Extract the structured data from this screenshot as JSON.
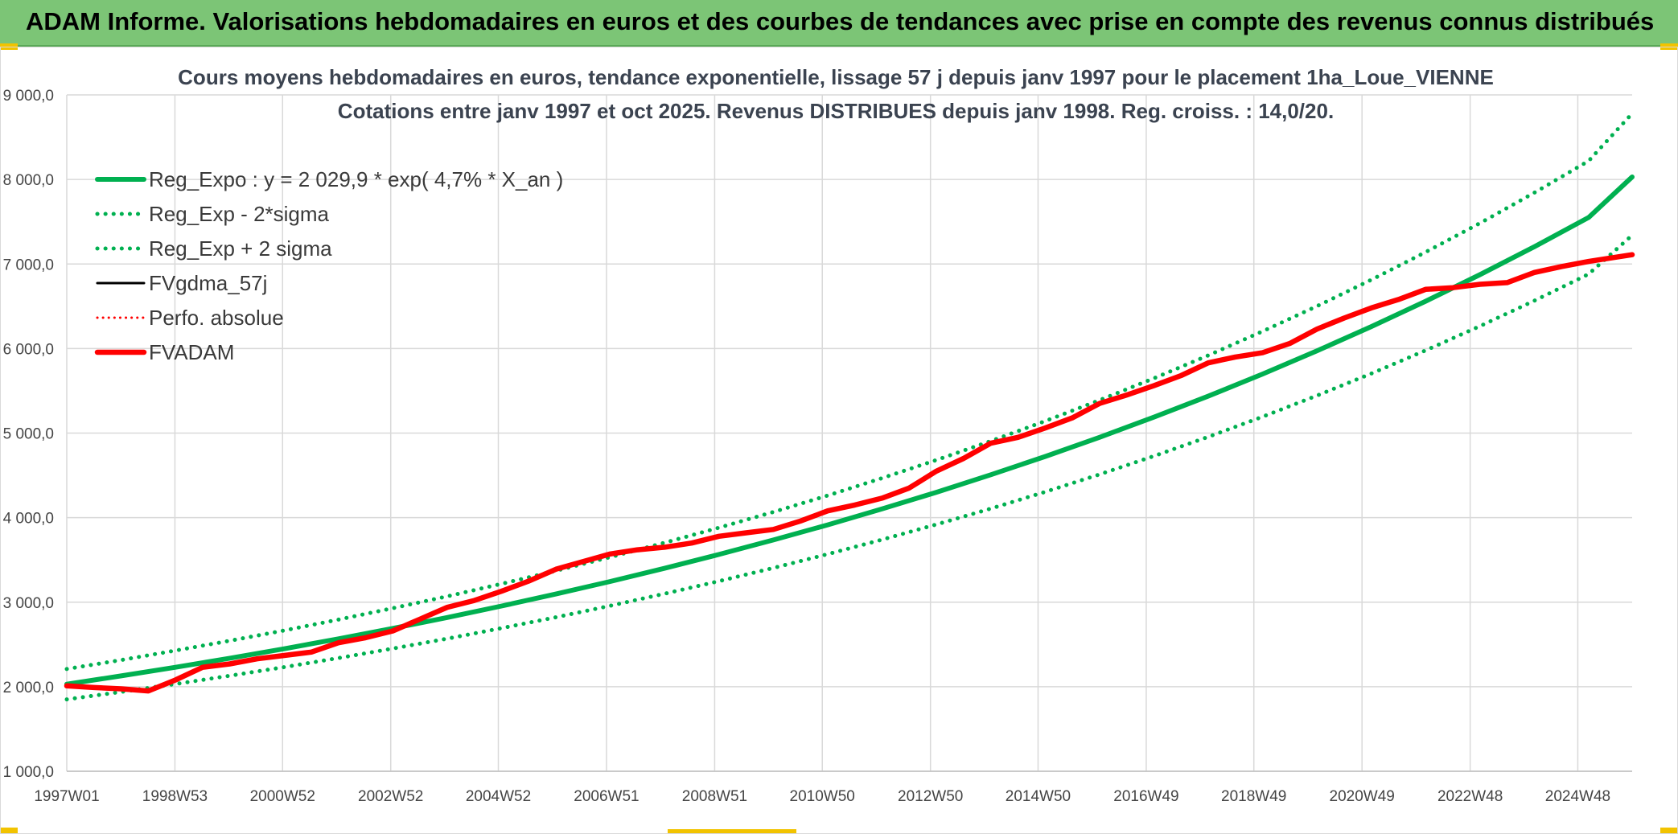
{
  "banner": {
    "text": "ADAM Informe. Valorisations hebdomadaires en euros et des courbes de tendances avec prise en compte des revenus connus distribués",
    "background": "#7cc576"
  },
  "chart_data": {
    "type": "line",
    "title": "Cours moyens hebdomadaires en euros, tendance exponentielle, lissage 57 j depuis janv 1997 pour le placement 1ha_Loue_VIENNE",
    "subtitle": "Cotations entre janv 1997 et oct 2025. Revenus DISTRIBUES depuis janv 1998. Reg. croiss. : 14,0/20.",
    "xlabel": "",
    "ylabel": "",
    "xlim": [
      1997.0,
      2025.8
    ],
    "ylim": [
      1000,
      9000
    ],
    "y_ticks": [
      1000,
      2000,
      3000,
      4000,
      5000,
      6000,
      7000,
      8000,
      9000
    ],
    "y_tick_labels": [
      "1 000,0",
      "2 000,0",
      "3 000,0",
      "4 000,0",
      "5 000,0",
      "6 000,0",
      "7 000,0",
      "8 000,0",
      "9 000,0"
    ],
    "x_ticks": [
      1997.0,
      1998.99,
      2000.97,
      2002.96,
      2004.94,
      2006.93,
      2008.92,
      2010.9,
      2012.89,
      2014.87,
      2016.86,
      2018.84,
      2020.83,
      2022.82,
      2024.8
    ],
    "x_tick_labels": [
      "1997W01",
      "1998W53",
      "2000W52",
      "2002W52",
      "2004W52",
      "2006W51",
      "2008W51",
      "2010W50",
      "2012W50",
      "2014W50",
      "2016W49",
      "2018W49",
      "2020W49",
      "2022W48",
      "2024W48"
    ],
    "grid": true,
    "legend_position": "top-left",
    "series": [
      {
        "name": "Reg_Expo : y = 2 029,9 * exp( 4,7% *  X_an )",
        "color": "#00b050",
        "style": "solid",
        "x": [
          1997.0,
          1998.0,
          1999.0,
          2000.0,
          2001.0,
          2002.0,
          2003.0,
          2004.0,
          2005.0,
          2006.0,
          2007.0,
          2008.0,
          2009.0,
          2010.0,
          2011.0,
          2012.0,
          2013.0,
          2014.0,
          2015.0,
          2016.0,
          2017.0,
          2018.0,
          2019.0,
          2020.0,
          2021.0,
          2022.0,
          2023.0,
          2024.0,
          2025.0,
          2025.8
        ],
        "values": [
          2030,
          2128,
          2230,
          2337,
          2449,
          2567,
          2690,
          2819,
          2955,
          3097,
          3245,
          3401,
          3565,
          3736,
          3915,
          4103,
          4300,
          4507,
          4723,
          4950,
          5188,
          5437,
          5698,
          5972,
          6259,
          6559,
          6874,
          7204,
          7550,
          8030
        ]
      },
      {
        "name": "Reg_Exp - 2*sigma",
        "color": "#00b050",
        "style": "dotted",
        "x": [
          1997.0,
          1998.0,
          1999.0,
          2000.0,
          2001.0,
          2002.0,
          2003.0,
          2004.0,
          2005.0,
          2006.0,
          2007.0,
          2008.0,
          2009.0,
          2010.0,
          2011.0,
          2012.0,
          2013.0,
          2014.0,
          2015.0,
          2016.0,
          2017.0,
          2018.0,
          2019.0,
          2020.0,
          2021.0,
          2022.0,
          2023.0,
          2024.0,
          2025.0,
          2025.8
        ],
        "values": [
          1850,
          1939,
          2032,
          2130,
          2232,
          2339,
          2452,
          2569,
          2693,
          2822,
          2958,
          3100,
          3249,
          3405,
          3568,
          3740,
          3919,
          4107,
          4305,
          4511,
          4728,
          4955,
          5193,
          5443,
          5704,
          5978,
          6265,
          6566,
          6881,
          7340
        ]
      },
      {
        "name": "Reg_Exp + 2 sigma",
        "color": "#00b050",
        "style": "dotted",
        "x": [
          1997.0,
          1998.0,
          1999.0,
          2000.0,
          2001.0,
          2002.0,
          2003.0,
          2004.0,
          2005.0,
          2006.0,
          2007.0,
          2008.0,
          2009.0,
          2010.0,
          2011.0,
          2012.0,
          2013.0,
          2014.0,
          2015.0,
          2016.0,
          2017.0,
          2018.0,
          2019.0,
          2020.0,
          2021.0,
          2022.0,
          2023.0,
          2024.0,
          2025.0,
          2025.8
        ],
        "values": [
          2210,
          2316,
          2428,
          2544,
          2666,
          2794,
          2929,
          3069,
          3217,
          3371,
          3533,
          3703,
          3881,
          4067,
          4262,
          4467,
          4681,
          4906,
          5142,
          5389,
          5648,
          5919,
          6203,
          6501,
          6813,
          7140,
          7483,
          7843,
          8219,
          8780
        ]
      },
      {
        "name": "FVgdma_57j",
        "color": "#000000",
        "style": "solid",
        "x": [
          1997.0,
          1997.5,
          1998.0,
          1998.5,
          1999.0,
          1999.5,
          2000.0,
          2000.5,
          2001.0,
          2001.5,
          2002.0,
          2002.5,
          2003.0,
          2003.5,
          2004.0,
          2004.5,
          2005.0,
          2005.5,
          2006.0,
          2006.5,
          2007.0,
          2007.5,
          2008.0,
          2008.5,
          2009.0,
          2009.5,
          2010.0,
          2010.5,
          2011.0,
          2011.5,
          2012.0,
          2012.5,
          2013.0,
          2013.5,
          2014.0,
          2014.5,
          2015.0,
          2015.5,
          2016.0,
          2016.5,
          2017.0,
          2017.5,
          2018.0,
          2018.5,
          2019.0,
          2019.5,
          2020.0,
          2020.5,
          2021.0,
          2021.5,
          2022.0,
          2022.5,
          2023.0,
          2023.5,
          2024.0,
          2024.5,
          2025.0,
          2025.5,
          2025.8
        ],
        "values": [
          2010,
          1990,
          1975,
          1950,
          2080,
          2230,
          2270,
          2330,
          2370,
          2410,
          2520,
          2580,
          2660,
          2800,
          2940,
          3020,
          3130,
          3250,
          3390,
          3480,
          3570,
          3620,
          3650,
          3700,
          3780,
          3820,
          3860,
          3960,
          4080,
          4150,
          4230,
          4350,
          4550,
          4700,
          4880,
          4950,
          5060,
          5180,
          5350,
          5450,
          5560,
          5680,
          5830,
          5900,
          5950,
          6060,
          6230,
          6360,
          6480,
          6580,
          6700,
          6720,
          6760,
          6780,
          6900,
          6970,
          7030,
          7080,
          7110
        ]
      },
      {
        "name": "Perfo. absolue",
        "color": "#ff0000",
        "style": "dotted",
        "x": [
          1997.0,
          1997.5,
          1998.0,
          1998.5,
          1999.0,
          1999.5,
          2000.0,
          2000.5,
          2001.0,
          2001.5,
          2002.0,
          2002.5,
          2003.0,
          2003.5,
          2004.0,
          2004.5,
          2005.0,
          2005.5,
          2006.0,
          2006.5,
          2007.0,
          2007.5,
          2008.0,
          2008.5,
          2009.0,
          2009.5,
          2010.0,
          2010.5,
          2011.0,
          2011.5,
          2012.0,
          2012.5,
          2013.0,
          2013.5,
          2014.0,
          2014.5,
          2015.0,
          2015.5,
          2016.0,
          2016.5,
          2017.0,
          2017.5,
          2018.0,
          2018.5,
          2019.0,
          2019.5,
          2020.0,
          2020.5,
          2021.0,
          2021.5,
          2022.0,
          2022.5,
          2023.0,
          2023.5,
          2024.0,
          2024.5,
          2025.0,
          2025.5,
          2025.8
        ],
        "values": [
          2010,
          1990,
          1975,
          1950,
          2080,
          2230,
          2270,
          2330,
          2370,
          2410,
          2520,
          2580,
          2660,
          2800,
          2940,
          3020,
          3130,
          3250,
          3390,
          3480,
          3570,
          3620,
          3650,
          3700,
          3780,
          3820,
          3860,
          3960,
          4080,
          4150,
          4230,
          4350,
          4550,
          4700,
          4880,
          4950,
          5060,
          5180,
          5350,
          5450,
          5560,
          5680,
          5830,
          5900,
          5950,
          6060,
          6230,
          6360,
          6480,
          6580,
          6700,
          6720,
          6760,
          6780,
          6900,
          6970,
          7030,
          7080,
          7110
        ]
      },
      {
        "name": "FVADAM",
        "color": "#ff0000",
        "style": "solid",
        "x": [
          1997.0,
          1997.5,
          1998.0,
          1998.5,
          1999.0,
          1999.5,
          2000.0,
          2000.5,
          2001.0,
          2001.5,
          2002.0,
          2002.5,
          2003.0,
          2003.5,
          2004.0,
          2004.5,
          2005.0,
          2005.5,
          2006.0,
          2006.5,
          2007.0,
          2007.5,
          2008.0,
          2008.5,
          2009.0,
          2009.5,
          2010.0,
          2010.5,
          2011.0,
          2011.5,
          2012.0,
          2012.5,
          2013.0,
          2013.5,
          2014.0,
          2014.5,
          2015.0,
          2015.5,
          2016.0,
          2016.5,
          2017.0,
          2017.5,
          2018.0,
          2018.5,
          2019.0,
          2019.5,
          2020.0,
          2020.5,
          2021.0,
          2021.5,
          2022.0,
          2022.5,
          2023.0,
          2023.5,
          2024.0,
          2024.5,
          2025.0,
          2025.5,
          2025.8
        ],
        "values": [
          2010,
          1990,
          1975,
          1950,
          2080,
          2230,
          2270,
          2330,
          2370,
          2410,
          2520,
          2580,
          2660,
          2800,
          2940,
          3020,
          3130,
          3250,
          3390,
          3480,
          3570,
          3620,
          3650,
          3700,
          3780,
          3820,
          3860,
          3960,
          4080,
          4150,
          4230,
          4350,
          4550,
          4700,
          4880,
          4950,
          5060,
          5180,
          5350,
          5450,
          5560,
          5680,
          5830,
          5900,
          5950,
          6060,
          6230,
          6360,
          6480,
          6580,
          6700,
          6720,
          6760,
          6780,
          6900,
          6970,
          7030,
          7080,
          7110
        ]
      }
    ]
  }
}
